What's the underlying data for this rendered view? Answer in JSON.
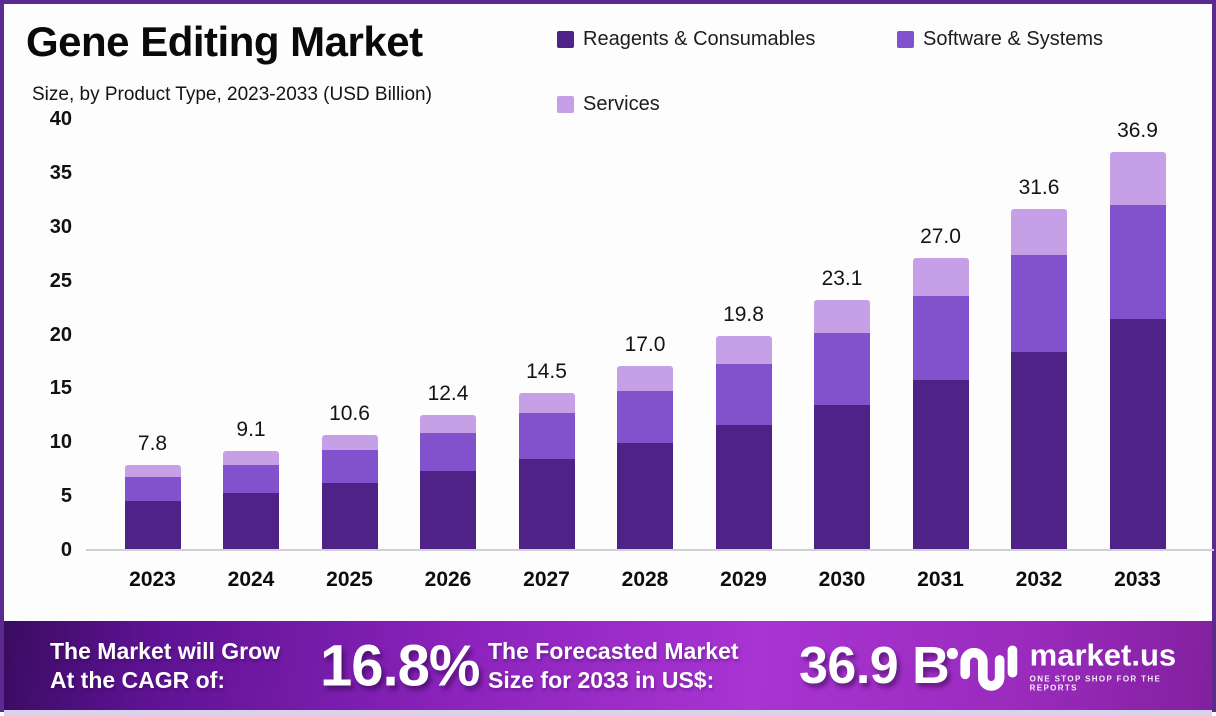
{
  "header": {
    "title": "Gene Editing Market",
    "subtitle": "Size, by Product Type, 2023-2033 (USD Billion)"
  },
  "legend": [
    {
      "label": "Reagents & Consumables",
      "color": "#4e2287"
    },
    {
      "label": "Software & Systems",
      "color": "#8252cc"
    },
    {
      "label": "Services",
      "color": "#c6a0e6"
    }
  ],
  "chart_data": {
    "type": "bar",
    "stacked": true,
    "title": "Gene Editing Market Size, by Product Type, 2023-2033 (USD Billion)",
    "categories": [
      "2023",
      "2024",
      "2025",
      "2026",
      "2027",
      "2028",
      "2029",
      "2030",
      "2031",
      "2032",
      "2033"
    ],
    "series": [
      {
        "name": "Reagents & Consumables",
        "color": "#4e2287",
        "values": [
          4.5,
          5.2,
          6.1,
          7.2,
          8.4,
          9.8,
          11.5,
          13.4,
          15.7,
          18.3,
          21.4
        ]
      },
      {
        "name": "Software & Systems",
        "color": "#8252cc",
        "values": [
          2.2,
          2.6,
          3.1,
          3.6,
          4.2,
          4.9,
          5.7,
          6.7,
          7.8,
          9.0,
          10.5
        ]
      },
      {
        "name": "Services",
        "color": "#c6a0e6",
        "values": [
          1.1,
          1.3,
          1.4,
          1.6,
          1.9,
          2.3,
          2.6,
          3.0,
          3.5,
          4.3,
          5.0
        ]
      }
    ],
    "totals": [
      "7.8",
      "9.1",
      "10.6",
      "12.4",
      "14.5",
      "17.0",
      "19.8",
      "23.1",
      "27.0",
      "31.6",
      "36.9"
    ],
    "ylabel": "",
    "xlabel": "",
    "ylim": [
      0,
      40
    ],
    "yticks": [
      0,
      5,
      10,
      15,
      20,
      25,
      30,
      35,
      40
    ],
    "grid": false,
    "legend_position": "top-right"
  },
  "footer": {
    "cagr_label_line1": "The Market will Grow",
    "cagr_label_line2": "At the CAGR of:",
    "cagr_value": "16.8%",
    "forecast_label_line1": "The Forecasted Market",
    "forecast_label_line2": "Size for 2033 in US$:",
    "forecast_value": "36.9 B",
    "brand": {
      "name": "market.us",
      "tagline": "ONE STOP SHOP FOR THE REPORTS"
    }
  },
  "colors": {
    "border": "#5b2a8e",
    "banner_gradient_start": "#3a0c61",
    "banner_gradient_mid": "#a834d2",
    "banner_gradient_end": "#83209f",
    "axis_line": "#d2d0d6",
    "text": "#111111"
  }
}
